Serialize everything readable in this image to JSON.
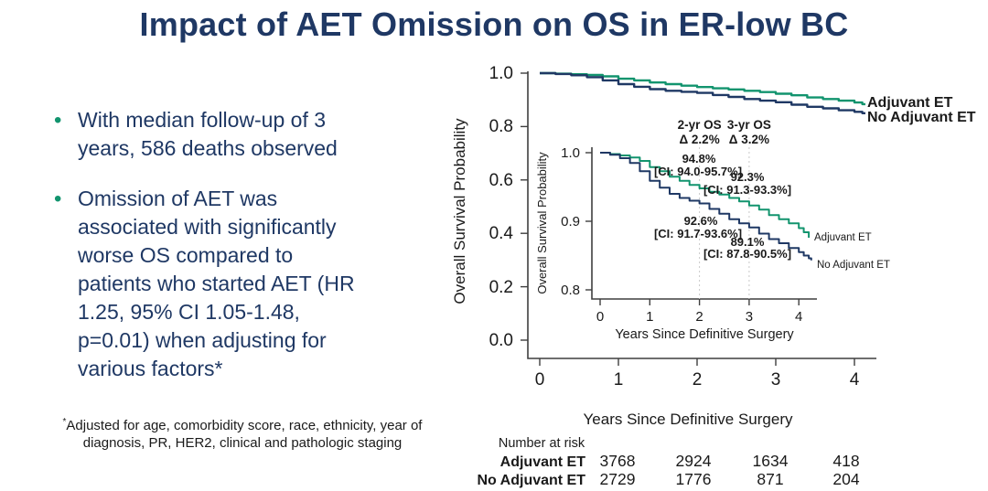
{
  "title": "Impact of AET Omission on OS in ER-low BC",
  "bullets": {
    "items": [
      "With median follow-up of 3\nyears, 586 deaths observed",
      "Omission of AET was\nassociated with significantly\nworse OS compared to\npatients who started AET (HR\n1.25, 95% CI 1.05-1.48,\np=0.01) when adjusting for\nvarious factors*"
    ]
  },
  "footnote": {
    "marker": "*",
    "text": "Adjusted for age, comorbidity score, race, ethnicity,  year of\ndiagnosis, PR, HER2, clinical and pathologic staging"
  },
  "colors": {
    "navy": "#1F3864",
    "green": "#12946E",
    "annotation_gray": "#595959",
    "axis_gray": "#3f3f3f",
    "dotted_gray": "#c9c9c9",
    "text_black": "#1a1a1a"
  },
  "chart_data": {
    "type": "line",
    "subtype": "kaplan-meier-step",
    "title": "",
    "xlabel": "Years Since Definitive Surgery",
    "ylabel": "Overall Survival Probability",
    "main_axis": {
      "ylabel": "Overall Survival Probability",
      "xlabel": "Years Since Definitive Surgery",
      "yticks": [
        "1.0",
        "0.8",
        "0.6",
        "0.4",
        "0.2",
        "0.0"
      ],
      "xticks": [
        "0",
        "1",
        "2",
        "3",
        "4"
      ],
      "ylim": [
        0.0,
        1.0
      ],
      "xlim": [
        0,
        4.3
      ],
      "grid": false
    },
    "inset_axis": {
      "ylabel": "Overall Survival Probability",
      "xlabel": "Years Since Definitive Surgery",
      "yticks": [
        "1.0",
        "0.9",
        "0.8"
      ],
      "xticks": [
        "0",
        "1",
        "2",
        "3",
        "4"
      ],
      "ylim": [
        0.8,
        1.0
      ],
      "xlim": [
        0,
        4.3
      ],
      "grid": false
    },
    "series": [
      {
        "name": "Adjuvant ET",
        "color": "#12946E",
        "points": [
          [
            0.0,
            1.0
          ],
          [
            0.2,
            0.998
          ],
          [
            0.4,
            0.996
          ],
          [
            0.6,
            0.993
          ],
          [
            0.8,
            0.988
          ],
          [
            1.0,
            0.979
          ],
          [
            1.2,
            0.973
          ],
          [
            1.4,
            0.965
          ],
          [
            1.6,
            0.959
          ],
          [
            1.8,
            0.953
          ],
          [
            2.0,
            0.948
          ],
          [
            2.2,
            0.943
          ],
          [
            2.4,
            0.939
          ],
          [
            2.6,
            0.934
          ],
          [
            2.8,
            0.929
          ],
          [
            3.0,
            0.923
          ],
          [
            3.2,
            0.917
          ],
          [
            3.4,
            0.909
          ],
          [
            3.6,
            0.903
          ],
          [
            3.8,
            0.897
          ],
          [
            4.0,
            0.89
          ],
          [
            4.1,
            0.884
          ],
          [
            4.2,
            0.876
          ]
        ]
      },
      {
        "name": "No Adjuvant ET",
        "color": "#1F3864",
        "points": [
          [
            0.0,
            1.0
          ],
          [
            0.2,
            0.997
          ],
          [
            0.4,
            0.992
          ],
          [
            0.6,
            0.985
          ],
          [
            0.8,
            0.973
          ],
          [
            1.0,
            0.959
          ],
          [
            1.2,
            0.949
          ],
          [
            1.4,
            0.94
          ],
          [
            1.6,
            0.934
          ],
          [
            1.8,
            0.93
          ],
          [
            2.0,
            0.926
          ],
          [
            2.2,
            0.918
          ],
          [
            2.4,
            0.911
          ],
          [
            2.6,
            0.903
          ],
          [
            2.8,
            0.897
          ],
          [
            3.0,
            0.891
          ],
          [
            3.2,
            0.882
          ],
          [
            3.4,
            0.874
          ],
          [
            3.6,
            0.868
          ],
          [
            3.8,
            0.861
          ],
          [
            4.0,
            0.855
          ],
          [
            4.1,
            0.85
          ],
          [
            4.2,
            0.846
          ],
          [
            4.25,
            0.843
          ]
        ]
      }
    ],
    "annotations": {
      "col2": {
        "header": "2-yr OS",
        "delta": "Δ 2.2%"
      },
      "col3": {
        "header": "3-yr OS",
        "delta": "Δ 3.2%"
      },
      "green2": {
        "value": "94.8%",
        "ci": "[CI: 94.0-95.7%]"
      },
      "green3": {
        "value": "92.3%",
        "ci": "[CI: 91.3-93.3%]"
      },
      "navy2": {
        "value": "92.6%",
        "ci": "[CI: 91.7-93.6%]"
      },
      "navy3": {
        "value": "89.1%",
        "ci": "[CI: 87.8-90.5%]"
      }
    },
    "risk_table": {
      "title": "Number at risk",
      "xlabel": "Years Since Definitive Surgery",
      "timepoints": [
        "1",
        "2",
        "3",
        "4"
      ],
      "rows": [
        {
          "label": "Adjuvant ET",
          "values": [
            "3768",
            "2924",
            "1634",
            "418"
          ]
        },
        {
          "label": "No Adjuvant ET",
          "values": [
            "2729",
            "1776",
            "871",
            "204"
          ]
        }
      ]
    }
  }
}
